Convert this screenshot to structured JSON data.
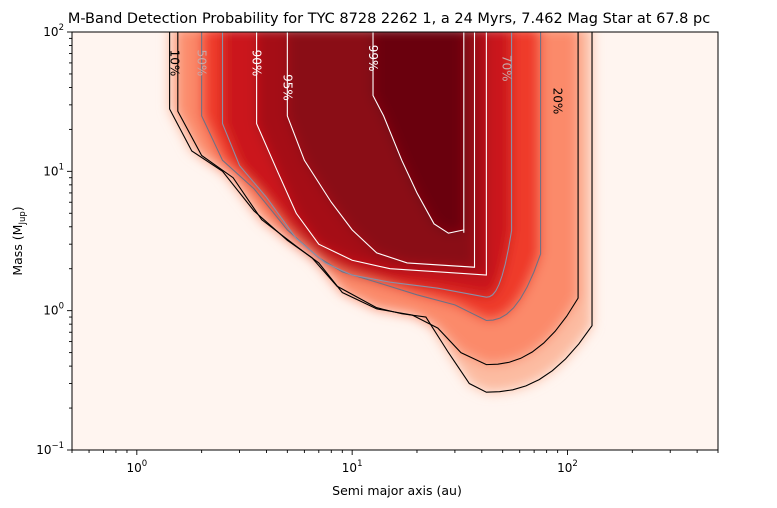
{
  "chart_data": {
    "type": "heatmap",
    "title": "M-Band Detection Probability for TYC 8728 2262 1, a 24 Myrs, 7.462 Mag Star at 67.8 pc",
    "xlabel": "Semi major axis (au)",
    "ylabel_main": "Mass (M",
    "ylabel_sub": "Jup",
    "ylabel_end": ")",
    "x_scale": "log",
    "y_scale": "log",
    "xlim": [
      0.5,
      500
    ],
    "ylim": [
      0.1,
      100
    ],
    "x_ticks": [
      {
        "value": 1,
        "base": "10",
        "exp": "0"
      },
      {
        "value": 10,
        "base": "10",
        "exp": "1"
      },
      {
        "value": 100,
        "base": "10",
        "exp": "2"
      }
    ],
    "y_ticks": [
      {
        "value": 0.1,
        "base": "10",
        "exp": "−1"
      },
      {
        "value": 1,
        "base": "10",
        "exp": "0"
      },
      {
        "value": 10,
        "base": "10",
        "exp": "1"
      },
      {
        "value": 100,
        "base": "10",
        "exp": "2"
      }
    ],
    "colormap": "Reds",
    "contours": [
      {
        "level": "10%",
        "color": "#000000",
        "label_a": 1.5,
        "label_m": 60,
        "outer_a": 130,
        "mass_min": 0.26,
        "inner": [
          [
            1.42,
            100
          ],
          [
            1.42,
            28
          ],
          [
            1.8,
            14
          ],
          [
            2.5,
            10
          ],
          [
            3.5,
            5.2
          ],
          [
            5,
            3.2
          ],
          [
            6.5,
            2.4
          ],
          [
            8.5,
            1.5
          ],
          [
            13,
            1.05
          ],
          [
            17,
            0.95
          ],
          [
            22,
            0.9
          ],
          [
            28,
            0.5
          ],
          [
            35,
            0.3
          ],
          [
            42,
            0.26
          ]
        ]
      },
      {
        "level": "20%",
        "color": "#000000",
        "label_a": 90,
        "label_m": 32,
        "outer_a": 112,
        "mass_min": 0.41,
        "inner": [
          [
            1.55,
            100
          ],
          [
            1.55,
            27
          ],
          [
            2,
            13
          ],
          [
            2.8,
            9
          ],
          [
            3.8,
            4.5
          ],
          [
            5.5,
            2.9
          ],
          [
            7,
            2.2
          ],
          [
            9,
            1.35
          ],
          [
            13,
            1.03
          ],
          [
            19,
            0.93
          ],
          [
            25,
            0.75
          ],
          [
            32,
            0.5
          ],
          [
            42,
            0.41
          ]
        ]
      },
      {
        "level": "50%",
        "color": "#6e7185",
        "label_a": 2.0,
        "label_m": 60,
        "outer_a": 75,
        "mass_min": 0.85,
        "inner": [
          [
            2,
            100
          ],
          [
            2,
            25
          ],
          [
            2.5,
            12
          ],
          [
            3.5,
            7.5
          ],
          [
            5,
            3.8
          ],
          [
            7,
            2.4
          ],
          [
            9,
            1.9
          ],
          [
            13,
            1.6
          ],
          [
            20,
            1.3
          ],
          [
            30,
            1.1
          ],
          [
            42,
            0.85
          ]
        ]
      },
      {
        "level": "70%",
        "color": "#8a90a8",
        "label_a": 52,
        "label_m": 55,
        "outer_a": 55,
        "mass_min": 1.25,
        "inner": [
          [
            2.5,
            100
          ],
          [
            2.5,
            22
          ],
          [
            3,
            11
          ],
          [
            4,
            6.5
          ],
          [
            5.5,
            3.3
          ],
          [
            7.5,
            2.2
          ],
          [
            10,
            1.8
          ],
          [
            15,
            1.6
          ],
          [
            25,
            1.45
          ],
          [
            42,
            1.25
          ]
        ]
      },
      {
        "level": "90%",
        "color": "#ffffff",
        "label_a": 3.6,
        "label_m": 60,
        "outer_a": 42,
        "mass_min": 1.8,
        "inner": [
          [
            3.6,
            100
          ],
          [
            3.6,
            22
          ],
          [
            4.5,
            10
          ],
          [
            5.5,
            5
          ],
          [
            7,
            3
          ],
          [
            10,
            2.3
          ],
          [
            15,
            2
          ],
          [
            25,
            1.9
          ],
          [
            42,
            1.8
          ]
        ]
      },
      {
        "level": "95%",
        "color": "#ffffff",
        "label_a": 5.0,
        "label_m": 40,
        "outer_a": 37,
        "mass_min": 2.05,
        "inner": [
          [
            5,
            100
          ],
          [
            5,
            25
          ],
          [
            6,
            12
          ],
          [
            8,
            6
          ],
          [
            10,
            3.8
          ],
          [
            13,
            2.6
          ],
          [
            18,
            2.2
          ],
          [
            37,
            2.05
          ]
        ]
      },
      {
        "level": "99%",
        "color": "#ffffff",
        "label_a": 12.5,
        "label_m": 65,
        "outer_a": 33,
        "mass_min": 3.6,
        "inner": [
          [
            12.5,
            100
          ],
          [
            12.5,
            35
          ],
          [
            14,
            25
          ],
          [
            17,
            12
          ],
          [
            20,
            7
          ],
          [
            24,
            4.2
          ],
          [
            28,
            3.6
          ],
          [
            33,
            3.8
          ]
        ]
      }
    ]
  }
}
